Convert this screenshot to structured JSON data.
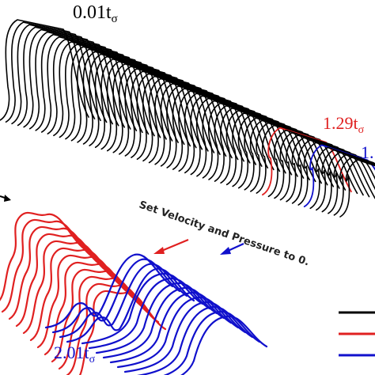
{
  "labels": {
    "top_time": "0.01t",
    "top_sub": "σ",
    "red_time": "1.29t",
    "red_sub": "σ",
    "blue_time_partial": "1.",
    "bottom_time": "2.01t",
    "bottom_sub": "σ",
    "annotation": "Set Velocity and Pressure to 0."
  },
  "colors": {
    "black": "#000000",
    "red": "#e02020",
    "blue": "#1010cc"
  },
  "legend": {
    "entries": [
      {
        "color": "#000000"
      },
      {
        "color": "#e02020"
      },
      {
        "color": "#1010cc"
      }
    ]
  }
}
